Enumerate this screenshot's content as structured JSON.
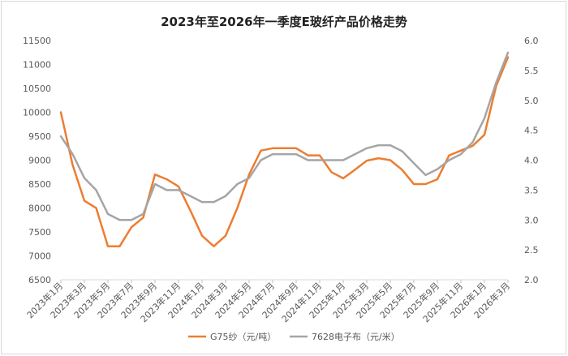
{
  "chart_data": {
    "type": "line",
    "title": "2023年至2026年一季度E玻纤产品价格走势",
    "x": [
      "2023年1月",
      "2023年2月",
      "2023年3月",
      "2023年4月",
      "2023年5月",
      "2023年6月",
      "2023年7月",
      "2023年8月",
      "2023年9月",
      "2023年10月",
      "2023年11月",
      "2023年12月",
      "2024年1月",
      "2024年2月",
      "2024年3月",
      "2024年4月",
      "2024年5月",
      "2024年6月",
      "2024年7月",
      "2024年8月",
      "2024年9月",
      "2024年10月",
      "2024年11月",
      "2024年12月",
      "2025年1月",
      "2025年2月",
      "2025年3月",
      "2025年4月",
      "2025年5月",
      "2025年6月",
      "2025年7月",
      "2025年8月",
      "2025年9月",
      "2025年10月",
      "2025年11月",
      "2025年12月",
      "2026年1月",
      "2026年2月",
      "2026年3月"
    ],
    "x_tick_labels": [
      "2023年1月",
      "2023年3月",
      "2023年5月",
      "2023年7月",
      "2023年9月",
      "2023年11月",
      "2024年1月",
      "2024年3月",
      "2024年5月",
      "2024年7月",
      "2024年9月",
      "2024年11月",
      "2025年1月",
      "2025年3月",
      "2025年5月",
      "2025年7月",
      "2025年9月",
      "2025年11月",
      "2026年1月",
      "2026年3月"
    ],
    "y_left": {
      "min": 6500,
      "max": 11500,
      "step": 500
    },
    "y_right": {
      "min": 2.0,
      "max": 6.0,
      "step": 0.5
    },
    "series": [
      {
        "name": "G75纱（元/吨）",
        "axis": "left",
        "color": "#ED7D31",
        "values": [
          10000,
          8900,
          8150,
          8000,
          7200,
          7200,
          7600,
          7800,
          8700,
          8600,
          8450,
          7950,
          7420,
          7200,
          7420,
          8000,
          8700,
          9200,
          9250,
          9250,
          9250,
          9100,
          9100,
          8750,
          8620,
          8800,
          8990,
          9040,
          9000,
          8800,
          8500,
          8500,
          8600,
          9100,
          9200,
          9300,
          9530,
          10550,
          11150
        ]
      },
      {
        "name": "7628电子布（元/米）",
        "axis": "right",
        "color": "#A5A5A5",
        "values": [
          4.4,
          4.1,
          3.7,
          3.5,
          3.1,
          3.0,
          3.0,
          3.1,
          3.6,
          3.5,
          3.5,
          3.4,
          3.3,
          3.3,
          3.4,
          3.6,
          3.7,
          4.0,
          4.1,
          4.1,
          4.1,
          4.0,
          4.0,
          4.0,
          4.0,
          4.1,
          4.2,
          4.25,
          4.25,
          4.15,
          3.95,
          3.75,
          3.85,
          4.0,
          4.1,
          4.3,
          4.7,
          5.3,
          5.8
        ]
      }
    ],
    "grid": false,
    "legend_position": "bottom"
  }
}
